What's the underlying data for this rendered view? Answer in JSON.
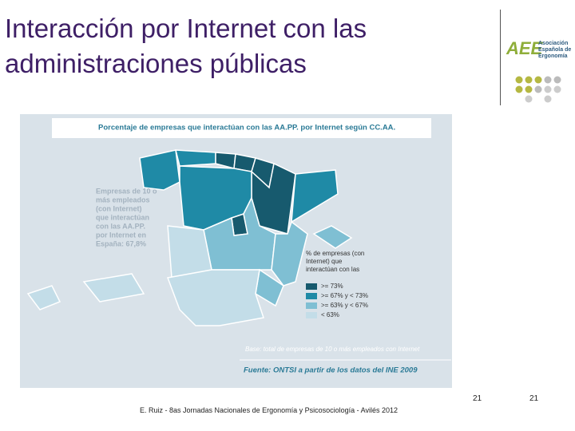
{
  "title": [
    "Interacción por Internet con las",
    "administraciones públicas"
  ],
  "logo": {
    "mark": "AEE",
    "lines": [
      "Asociación",
      "Española de",
      "Ergonomía"
    ]
  },
  "map": {
    "title": "Porcentaje de empresas que interactúan con las AA.PP. por Internet según CC.AA.",
    "note": [
      "Empresas de 10 o",
      "más empleados",
      "(con Internet)",
      "que interactúan",
      "con las AA.PP.",
      "por Internet en",
      "España: 67,8%"
    ],
    "legend": {
      "title": [
        "% de empresas (con",
        "Internet) que",
        "interactúan con las"
      ],
      "items": [
        {
          "label": ">= 73%",
          "color": "#175a6e"
        },
        {
          "label": ">= 67% y < 73%",
          "color": "#1f8aa6"
        },
        {
          "label": ">= 63% y < 67%",
          "color": "#7fbfd3"
        },
        {
          "label": "< 63%",
          "color": "#c3dde8"
        }
      ]
    },
    "base": "Base: total de empresas de 10 o más empleados con Internet",
    "source": "Fuente: ONTSI a partir de los datos del INE 2009"
  },
  "footer": "E. Ruiz - 8as Jornadas Nacionales de Ergonomía y Psicosociología - Avilés 2012",
  "page_numbers": [
    "21",
    "21"
  ]
}
